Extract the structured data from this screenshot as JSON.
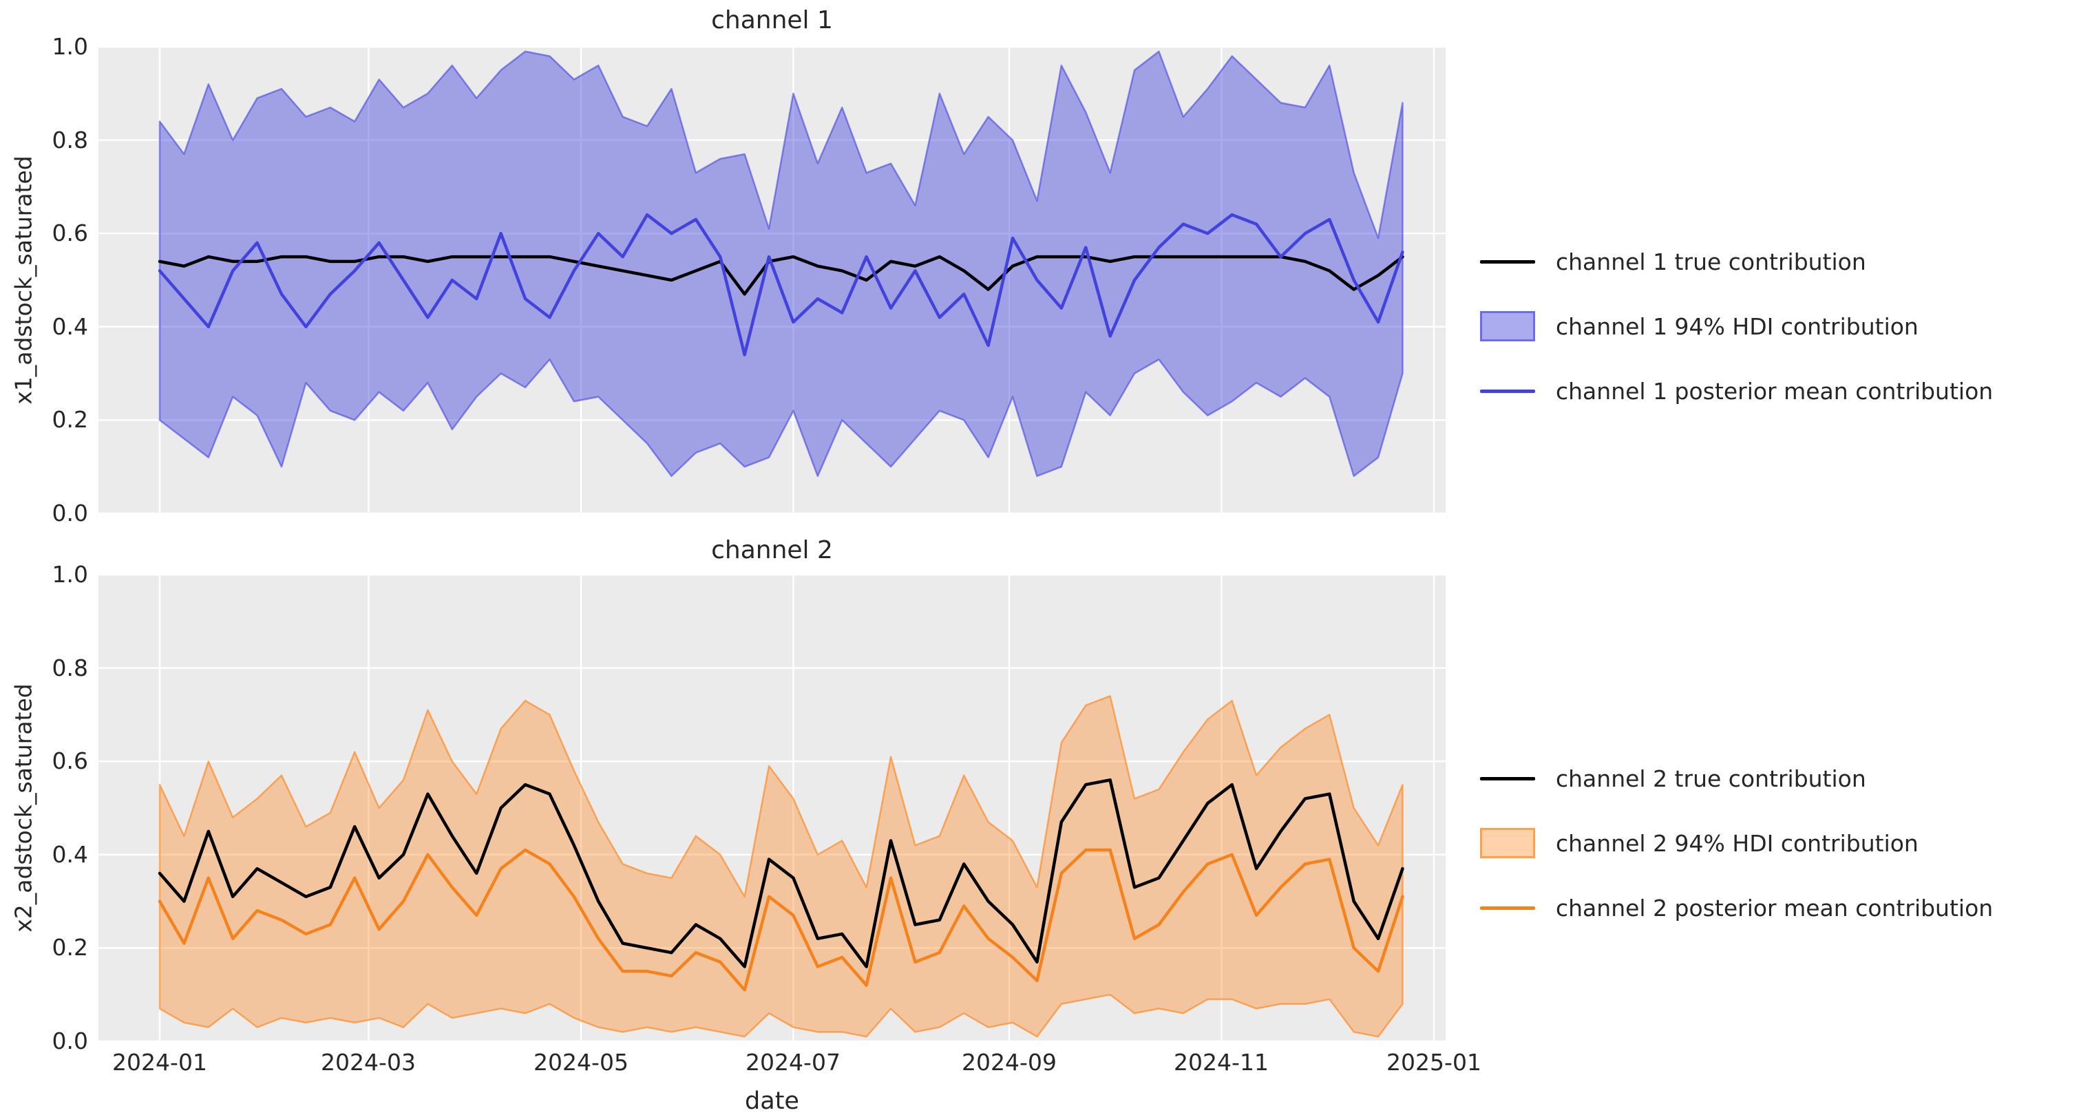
{
  "figure": {
    "xlabel": "date",
    "xticks": [
      "2024-01",
      "2024-03",
      "2024-05",
      "2024-07",
      "2024-09",
      "2024-11",
      "2025-01"
    ],
    "charts": [
      {
        "title": "channel 1",
        "ylabel": "x1_adstock_saturated",
        "yticks": [
          "1.0",
          "0.8",
          "0.6",
          "0.4",
          "0.2",
          "0.0"
        ],
        "legend": [
          {
            "label": "channel 1 true contribution"
          },
          {
            "label": "channel 1 94% HDI contribution"
          },
          {
            "label": "channel 1 posterior mean contribution"
          }
        ]
      },
      {
        "title": "channel 2",
        "ylabel": "x2_adstock_saturated",
        "yticks": [
          "1.0",
          "0.8",
          "0.6",
          "0.4",
          "0.2",
          "0.0"
        ],
        "legend": [
          {
            "label": "channel 2 true contribution"
          },
          {
            "label": "channel 2 94% HDI contribution"
          },
          {
            "label": "channel 2 posterior mean contribution"
          }
        ]
      }
    ]
  },
  "colors": {
    "axes_bg": "#ebebeb",
    "grid": "#ffffff",
    "text": "#262626",
    "true_line": "#000000",
    "ch1_line": "#4343dc",
    "ch1_band_fill": "rgba(68,68,221,0.45)",
    "ch1_band_edge": "rgba(68,68,221,0.6)",
    "ch2_line": "#f5831d",
    "ch2_band_fill": "rgba(255,127,14,0.35)",
    "ch2_band_edge": "rgba(255,127,14,0.6)"
  },
  "chart_data": [
    {
      "type": "line",
      "title": "channel 1",
      "xlabel": "date",
      "ylabel": "x1_adstock_saturated",
      "ylim": [
        0.0,
        1.0
      ],
      "xlim": [
        "2024-01",
        "2025-01"
      ],
      "grid": true,
      "legend_position": "center right, outside axes",
      "x": [
        "2024-01-01",
        "2024-01-08",
        "2024-01-15",
        "2024-01-22",
        "2024-01-29",
        "2024-02-05",
        "2024-02-12",
        "2024-02-19",
        "2024-02-26",
        "2024-03-04",
        "2024-03-11",
        "2024-03-18",
        "2024-03-25",
        "2024-04-01",
        "2024-04-08",
        "2024-04-15",
        "2024-04-22",
        "2024-04-29",
        "2024-05-06",
        "2024-05-13",
        "2024-05-20",
        "2024-05-27",
        "2024-06-03",
        "2024-06-10",
        "2024-06-17",
        "2024-06-24",
        "2024-07-01",
        "2024-07-08",
        "2024-07-15",
        "2024-07-22",
        "2024-07-29",
        "2024-08-05",
        "2024-08-12",
        "2024-08-19",
        "2024-08-26",
        "2024-09-02",
        "2024-09-09",
        "2024-09-16",
        "2024-09-23",
        "2024-09-30",
        "2024-10-07",
        "2024-10-14",
        "2024-10-21",
        "2024-10-28",
        "2024-11-04",
        "2024-11-11",
        "2024-11-18",
        "2024-11-25",
        "2024-12-02",
        "2024-12-09",
        "2024-12-16",
        "2024-12-23"
      ],
      "band": {
        "name": "channel 1 94% HDI contribution",
        "fill": "rgba(68,68,221,0.45)",
        "edge": "rgba(68,68,221,0.6)",
        "upper": [
          0.84,
          0.77,
          0.92,
          0.8,
          0.89,
          0.91,
          0.85,
          0.87,
          0.84,
          0.93,
          0.87,
          0.9,
          0.96,
          0.89,
          0.95,
          0.99,
          0.98,
          0.93,
          0.96,
          0.85,
          0.83,
          0.91,
          0.73,
          0.76,
          0.77,
          0.61,
          0.9,
          0.75,
          0.87,
          0.73,
          0.75,
          0.66,
          0.9,
          0.77,
          0.85,
          0.8,
          0.67,
          0.96,
          0.86,
          0.73,
          0.95,
          0.99,
          0.85,
          0.91,
          0.98,
          0.93,
          0.88,
          0.87,
          0.96,
          0.73,
          0.59,
          0.88
        ],
        "lower": [
          0.2,
          0.16,
          0.12,
          0.25,
          0.21,
          0.1,
          0.28,
          0.22,
          0.2,
          0.26,
          0.22,
          0.28,
          0.18,
          0.25,
          0.3,
          0.27,
          0.33,
          0.24,
          0.25,
          0.2,
          0.15,
          0.08,
          0.13,
          0.15,
          0.1,
          0.12,
          0.22,
          0.08,
          0.2,
          0.15,
          0.1,
          0.16,
          0.22,
          0.2,
          0.12,
          0.25,
          0.08,
          0.1,
          0.26,
          0.21,
          0.3,
          0.33,
          0.26,
          0.21,
          0.24,
          0.28,
          0.25,
          0.29,
          0.25,
          0.08,
          0.12,
          0.3
        ]
      },
      "series": [
        {
          "name": "channel 1 true contribution",
          "color": "#000000",
          "values": [
            0.54,
            0.53,
            0.55,
            0.54,
            0.54,
            0.55,
            0.55,
            0.54,
            0.54,
            0.55,
            0.55,
            0.54,
            0.55,
            0.55,
            0.55,
            0.55,
            0.55,
            0.54,
            0.53,
            0.52,
            0.51,
            0.5,
            0.52,
            0.54,
            0.47,
            0.54,
            0.55,
            0.53,
            0.52,
            0.5,
            0.54,
            0.53,
            0.55,
            0.52,
            0.48,
            0.53,
            0.55,
            0.55,
            0.55,
            0.54,
            0.55,
            0.55,
            0.55,
            0.55,
            0.55,
            0.55,
            0.55,
            0.54,
            0.52,
            0.48,
            0.51,
            0.55
          ]
        },
        {
          "name": "channel 1 posterior mean contribution",
          "color": "#4343dc",
          "values": [
            0.52,
            0.46,
            0.4,
            0.52,
            0.58,
            0.47,
            0.4,
            0.47,
            0.52,
            0.58,
            0.5,
            0.42,
            0.5,
            0.46,
            0.6,
            0.46,
            0.42,
            0.52,
            0.6,
            0.55,
            0.64,
            0.6,
            0.63,
            0.55,
            0.34,
            0.55,
            0.41,
            0.46,
            0.43,
            0.55,
            0.44,
            0.52,
            0.42,
            0.47,
            0.36,
            0.59,
            0.5,
            0.44,
            0.57,
            0.38,
            0.5,
            0.57,
            0.62,
            0.6,
            0.64,
            0.62,
            0.55,
            0.6,
            0.63,
            0.5,
            0.41,
            0.56
          ]
        }
      ]
    },
    {
      "type": "line",
      "title": "channel 2",
      "xlabel": "date",
      "ylabel": "x2_adstock_saturated",
      "ylim": [
        0.0,
        1.0
      ],
      "xlim": [
        "2024-01",
        "2025-01"
      ],
      "grid": true,
      "legend_position": "center right, outside axes",
      "x": [
        "2024-01-01",
        "2024-01-08",
        "2024-01-15",
        "2024-01-22",
        "2024-01-29",
        "2024-02-05",
        "2024-02-12",
        "2024-02-19",
        "2024-02-26",
        "2024-03-04",
        "2024-03-11",
        "2024-03-18",
        "2024-03-25",
        "2024-04-01",
        "2024-04-08",
        "2024-04-15",
        "2024-04-22",
        "2024-04-29",
        "2024-05-06",
        "2024-05-13",
        "2024-05-20",
        "2024-05-27",
        "2024-06-03",
        "2024-06-10",
        "2024-06-17",
        "2024-06-24",
        "2024-07-01",
        "2024-07-08",
        "2024-07-15",
        "2024-07-22",
        "2024-07-29",
        "2024-08-05",
        "2024-08-12",
        "2024-08-19",
        "2024-08-26",
        "2024-09-02",
        "2024-09-09",
        "2024-09-16",
        "2024-09-23",
        "2024-09-30",
        "2024-10-07",
        "2024-10-14",
        "2024-10-21",
        "2024-10-28",
        "2024-11-04",
        "2024-11-11",
        "2024-11-18",
        "2024-11-25",
        "2024-12-02",
        "2024-12-09",
        "2024-12-16",
        "2024-12-23"
      ],
      "band": {
        "name": "channel 2 94% HDI contribution",
        "fill": "rgba(255,127,14,0.35)",
        "edge": "rgba(255,127,14,0.6)",
        "upper": [
          0.55,
          0.44,
          0.6,
          0.48,
          0.52,
          0.57,
          0.46,
          0.49,
          0.62,
          0.5,
          0.56,
          0.71,
          0.6,
          0.53,
          0.67,
          0.73,
          0.7,
          0.58,
          0.47,
          0.38,
          0.36,
          0.35,
          0.44,
          0.4,
          0.31,
          0.59,
          0.52,
          0.4,
          0.43,
          0.33,
          0.61,
          0.42,
          0.44,
          0.57,
          0.47,
          0.43,
          0.33,
          0.64,
          0.72,
          0.74,
          0.52,
          0.54,
          0.62,
          0.69,
          0.73,
          0.57,
          0.63,
          0.67,
          0.7,
          0.5,
          0.42,
          0.55
        ],
        "lower": [
          0.07,
          0.04,
          0.03,
          0.07,
          0.03,
          0.05,
          0.04,
          0.05,
          0.04,
          0.05,
          0.03,
          0.08,
          0.05,
          0.06,
          0.07,
          0.06,
          0.08,
          0.05,
          0.03,
          0.02,
          0.03,
          0.02,
          0.03,
          0.02,
          0.01,
          0.06,
          0.03,
          0.02,
          0.02,
          0.01,
          0.07,
          0.02,
          0.03,
          0.06,
          0.03,
          0.04,
          0.01,
          0.08,
          0.09,
          0.1,
          0.06,
          0.07,
          0.06,
          0.09,
          0.09,
          0.07,
          0.08,
          0.08,
          0.09,
          0.02,
          0.01,
          0.08
        ]
      },
      "series": [
        {
          "name": "channel 2 true contribution",
          "color": "#000000",
          "values": [
            0.36,
            0.3,
            0.45,
            0.31,
            0.37,
            0.34,
            0.31,
            0.33,
            0.46,
            0.35,
            0.4,
            0.53,
            0.44,
            0.36,
            0.5,
            0.55,
            0.53,
            0.42,
            0.3,
            0.21,
            0.2,
            0.19,
            0.25,
            0.22,
            0.16,
            0.39,
            0.35,
            0.22,
            0.23,
            0.16,
            0.43,
            0.25,
            0.26,
            0.38,
            0.3,
            0.25,
            0.17,
            0.47,
            0.55,
            0.56,
            0.33,
            0.35,
            0.43,
            0.51,
            0.55,
            0.37,
            0.45,
            0.52,
            0.53,
            0.3,
            0.22,
            0.37
          ]
        },
        {
          "name": "channel 2 posterior mean contribution",
          "color": "#f5831d",
          "values": [
            0.3,
            0.21,
            0.35,
            0.22,
            0.28,
            0.26,
            0.23,
            0.25,
            0.35,
            0.24,
            0.3,
            0.4,
            0.33,
            0.27,
            0.37,
            0.41,
            0.38,
            0.31,
            0.22,
            0.15,
            0.15,
            0.14,
            0.19,
            0.17,
            0.11,
            0.31,
            0.27,
            0.16,
            0.18,
            0.12,
            0.35,
            0.17,
            0.19,
            0.29,
            0.22,
            0.18,
            0.13,
            0.36,
            0.41,
            0.41,
            0.22,
            0.25,
            0.32,
            0.38,
            0.4,
            0.27,
            0.33,
            0.38,
            0.39,
            0.2,
            0.15,
            0.31
          ]
        }
      ]
    }
  ]
}
